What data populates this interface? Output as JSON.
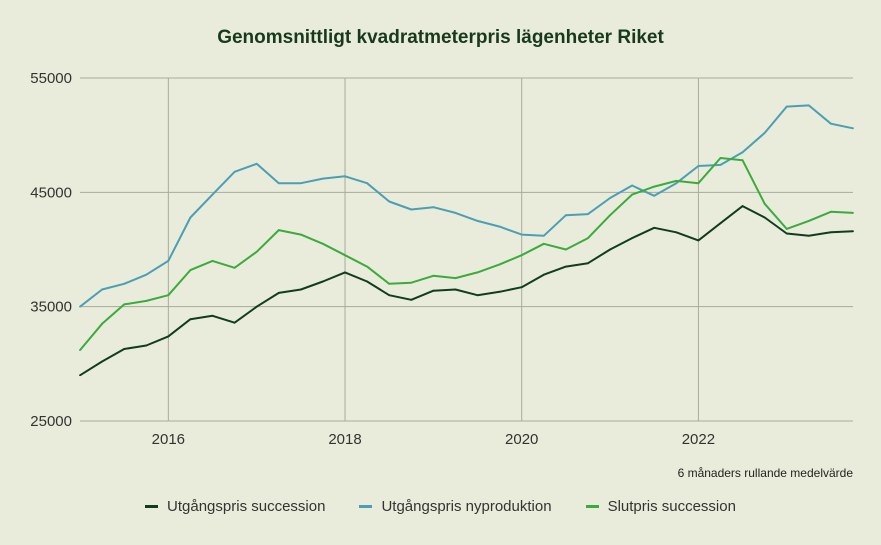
{
  "chart_data": {
    "type": "line",
    "title": "Genomsnittligt kvadratmeterpris lägenheter Riket",
    "annotation": "6 månaders rullande medelvärde",
    "xlabel": "",
    "ylabel": "",
    "ylim": [
      25000,
      55000
    ],
    "yticks": [
      25000,
      35000,
      45000,
      55000
    ],
    "ytick_labels": [
      "25000",
      "35000",
      "45000",
      "55000"
    ],
    "xlim": [
      2015.0,
      2023.75
    ],
    "xticks": [
      2016,
      2018,
      2020,
      2022
    ],
    "xtick_labels": [
      "2016",
      "2018",
      "2020",
      "2022"
    ],
    "grid": true,
    "legend_position": "bottom",
    "series": [
      {
        "name": "Utgångspris succession",
        "color": "#0f3d1f",
        "x": [
          2015.0,
          2015.25,
          2015.5,
          2015.75,
          2016.0,
          2016.25,
          2016.5,
          2016.75,
          2017.0,
          2017.25,
          2017.5,
          2017.75,
          2018.0,
          2018.25,
          2018.5,
          2018.75,
          2019.0,
          2019.25,
          2019.5,
          2019.75,
          2020.0,
          2020.25,
          2020.5,
          2020.75,
          2021.0,
          2021.25,
          2021.5,
          2021.75,
          2022.0,
          2022.25,
          2022.5,
          2022.75,
          2023.0,
          2023.25,
          2023.5,
          2023.75
        ],
        "values": [
          29000,
          30200,
          31300,
          31600,
          32400,
          33900,
          34200,
          33600,
          35000,
          36200,
          36500,
          37200,
          38000,
          37200,
          36000,
          35600,
          36400,
          36500,
          36000,
          36300,
          36700,
          37800,
          38500,
          38800,
          40000,
          41000,
          41900,
          41500,
          40800,
          42300,
          43800,
          42800,
          41400,
          41200,
          41500,
          41600
        ]
      },
      {
        "name": "Utgångspris nyproduktion",
        "color": "#4a9fb5",
        "x": [
          2015.0,
          2015.25,
          2015.5,
          2015.75,
          2016.0,
          2016.25,
          2016.5,
          2016.75,
          2017.0,
          2017.25,
          2017.5,
          2017.75,
          2018.0,
          2018.25,
          2018.5,
          2018.75,
          2019.0,
          2019.25,
          2019.5,
          2019.75,
          2020.0,
          2020.25,
          2020.5,
          2020.75,
          2021.0,
          2021.25,
          2021.5,
          2021.75,
          2022.0,
          2022.25,
          2022.5,
          2022.75,
          2023.0,
          2023.25,
          2023.5,
          2023.75
        ],
        "values": [
          35000,
          36500,
          37000,
          37800,
          39000,
          42800,
          44800,
          46800,
          47500,
          45800,
          45800,
          46200,
          46400,
          45800,
          44200,
          43500,
          43700,
          43200,
          42500,
          42000,
          41300,
          41200,
          43000,
          43100,
          44500,
          45600,
          44700,
          45800,
          47300,
          47400,
          48500,
          50200,
          52500,
          52600,
          51000,
          50600
        ]
      },
      {
        "name": "Slutpris succession",
        "color": "#3aab3c",
        "x": [
          2015.0,
          2015.25,
          2015.5,
          2015.75,
          2016.0,
          2016.25,
          2016.5,
          2016.75,
          2017.0,
          2017.25,
          2017.5,
          2017.75,
          2018.0,
          2018.25,
          2018.5,
          2018.75,
          2019.0,
          2019.25,
          2019.5,
          2019.75,
          2020.0,
          2020.25,
          2020.5,
          2020.75,
          2021.0,
          2021.25,
          2021.5,
          2021.75,
          2022.0,
          2022.25,
          2022.5,
          2022.75,
          2023.0,
          2023.25,
          2023.5,
          2023.75
        ],
        "values": [
          31200,
          33500,
          35200,
          35500,
          36000,
          38200,
          39000,
          38400,
          39800,
          41700,
          41300,
          40500,
          39500,
          38500,
          37000,
          37100,
          37700,
          37500,
          38000,
          38700,
          39500,
          40500,
          40000,
          41000,
          43000,
          44800,
          45500,
          46000,
          45800,
          48000,
          47800,
          44000,
          41800,
          42500,
          43300,
          43200
        ]
      }
    ]
  }
}
